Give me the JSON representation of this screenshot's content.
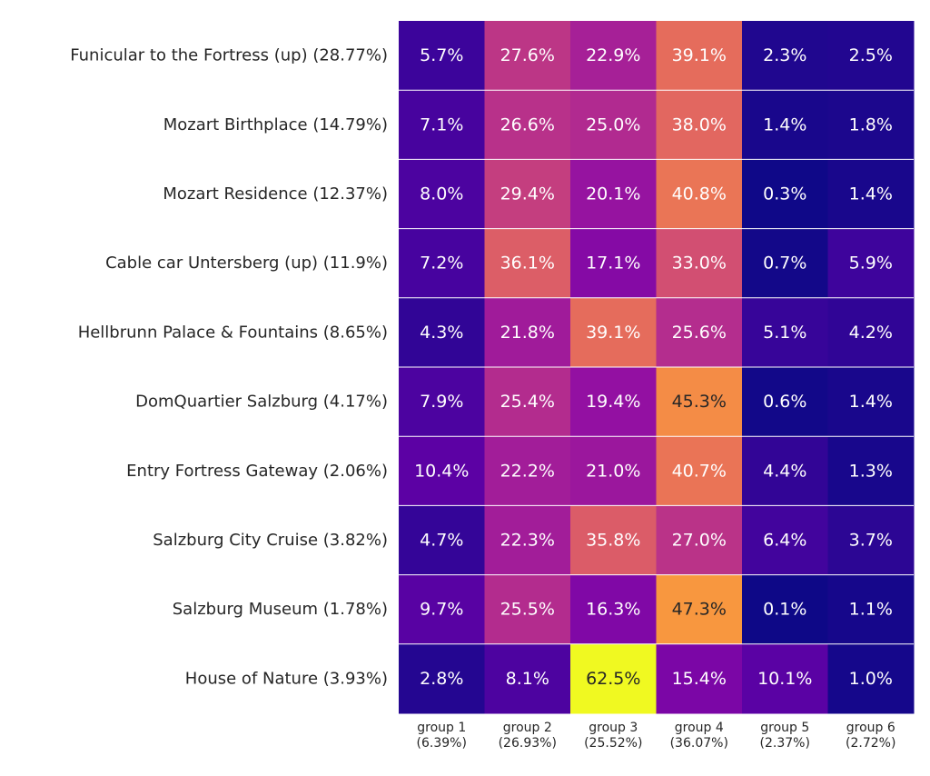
{
  "chart_data": {
    "type": "heatmap",
    "title": "",
    "xlabel": "",
    "ylabel": "",
    "colormap": "plasma",
    "value_range": [
      0,
      62.5
    ],
    "grid": "white row separators",
    "row_labels": [
      "Funicular to the Fortress (up) (28.77%)",
      "Mozart Birthplace (14.79%)",
      "Mozart Residence (12.37%)",
      "Cable car Untersberg (up) (11.9%)",
      "Hellbrunn Palace & Fountains (8.65%)",
      "DomQuartier Salzburg (4.17%)",
      "Entry Fortress Gateway (2.06%)",
      "Salzburg City Cruise (3.82%)",
      "Salzburg Museum (1.78%)",
      "House of Nature (3.93%)"
    ],
    "col_labels": [
      [
        "group 1",
        "(6.39%)"
      ],
      [
        "group 2",
        "(26.93%)"
      ],
      [
        "group 3",
        "(25.52%)"
      ],
      [
        "group 4",
        "(36.07%)"
      ],
      [
        "group 5",
        "(2.37%)"
      ],
      [
        "group 6",
        "(2.72%)"
      ]
    ],
    "values": [
      [
        5.7,
        27.6,
        22.9,
        39.1,
        2.3,
        2.5
      ],
      [
        7.1,
        26.6,
        25.0,
        38.0,
        1.4,
        1.8
      ],
      [
        8.0,
        29.4,
        20.1,
        40.8,
        0.3,
        1.4
      ],
      [
        7.2,
        36.1,
        17.1,
        33.0,
        0.7,
        5.9
      ],
      [
        4.3,
        21.8,
        39.1,
        25.6,
        5.1,
        4.2
      ],
      [
        7.9,
        25.4,
        19.4,
        45.3,
        0.6,
        1.4
      ],
      [
        10.4,
        22.2,
        21.0,
        40.7,
        4.4,
        1.3
      ],
      [
        4.7,
        22.3,
        35.8,
        27.0,
        6.4,
        3.7
      ],
      [
        9.7,
        25.5,
        16.3,
        47.3,
        0.1,
        1.1
      ],
      [
        2.8,
        8.1,
        62.5,
        15.4,
        10.1,
        1.0
      ]
    ],
    "value_suffix": "%",
    "text_color_light": "#ffffff",
    "text_color_dark": "#262626"
  }
}
